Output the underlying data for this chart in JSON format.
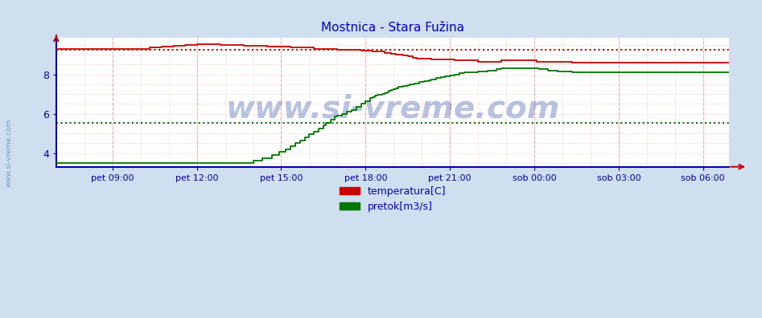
{
  "title": "Mostnica - Stara Fužina",
  "title_color": "#0000cc",
  "outer_bg_color": "#d0dff0",
  "plot_bg_color": "#ffffff",
  "xlabel_color": "#0000aa",
  "ylabel_color": "#0000aa",
  "x_tick_labels": [
    "pet 09:00",
    "pet 12:00",
    "pet 15:00",
    "pet 18:00",
    "pet 21:00",
    "sob 00:00",
    "sob 03:00",
    "sob 06:00"
  ],
  "x_tick_positions": [
    24,
    60,
    96,
    132,
    168,
    204,
    240,
    276
  ],
  "y_ticks": [
    4,
    6,
    8
  ],
  "ylim": [
    3.3,
    9.85
  ],
  "xlim": [
    0,
    287
  ],
  "red_avg": 9.25,
  "green_avg": 5.55,
  "red_color": "#cc0000",
  "green_color": "#007700",
  "spine_color": "#0000bb",
  "hgrid_color": "#ffaaaa",
  "vgrid_color": "#ffaaaa",
  "legend_labels": [
    "temperatura[C]",
    "pretok[m3/s]"
  ],
  "n_points": 288,
  "red_data": [
    9.3,
    9.3,
    9.3,
    9.3,
    9.3,
    9.3,
    9.3,
    9.3,
    9.3,
    9.3,
    9.3,
    9.3,
    9.3,
    9.3,
    9.3,
    9.3,
    9.3,
    9.3,
    9.3,
    9.3,
    9.3,
    9.3,
    9.3,
    9.3,
    9.3,
    9.3,
    9.3,
    9.3,
    9.3,
    9.3,
    9.3,
    9.3,
    9.3,
    9.3,
    9.3,
    9.3,
    9.3,
    9.3,
    9.3,
    9.3,
    9.35,
    9.35,
    9.35,
    9.35,
    9.35,
    9.4,
    9.4,
    9.4,
    9.4,
    9.4,
    9.45,
    9.45,
    9.45,
    9.45,
    9.45,
    9.5,
    9.5,
    9.5,
    9.5,
    9.5,
    9.55,
    9.55,
    9.55,
    9.55,
    9.55,
    9.55,
    9.55,
    9.55,
    9.55,
    9.55,
    9.5,
    9.5,
    9.5,
    9.5,
    9.5,
    9.5,
    9.5,
    9.5,
    9.5,
    9.5,
    9.45,
    9.45,
    9.45,
    9.45,
    9.45,
    9.45,
    9.45,
    9.45,
    9.45,
    9.45,
    9.4,
    9.4,
    9.4,
    9.4,
    9.4,
    9.4,
    9.4,
    9.4,
    9.4,
    9.4,
    9.35,
    9.35,
    9.35,
    9.35,
    9.35,
    9.35,
    9.35,
    9.35,
    9.35,
    9.35,
    9.3,
    9.3,
    9.3,
    9.3,
    9.3,
    9.3,
    9.3,
    9.3,
    9.3,
    9.3,
    9.25,
    9.25,
    9.25,
    9.25,
    9.25,
    9.25,
    9.25,
    9.25,
    9.25,
    9.25,
    9.2,
    9.2,
    9.2,
    9.2,
    9.2,
    9.15,
    9.15,
    9.15,
    9.15,
    9.15,
    9.1,
    9.1,
    9.1,
    9.05,
    9.05,
    9.0,
    9.0,
    9.0,
    8.95,
    8.95,
    8.9,
    8.9,
    8.85,
    8.85,
    8.8,
    8.8,
    8.8,
    8.8,
    8.8,
    8.8,
    8.75,
    8.75,
    8.75,
    8.75,
    8.75,
    8.75,
    8.75,
    8.75,
    8.75,
    8.75,
    8.7,
    8.7,
    8.7,
    8.7,
    8.7,
    8.7,
    8.7,
    8.7,
    8.7,
    8.7,
    8.65,
    8.65,
    8.65,
    8.65,
    8.65,
    8.65,
    8.65,
    8.65,
    8.65,
    8.65,
    8.7,
    8.7,
    8.7,
    8.7,
    8.7,
    8.7,
    8.7,
    8.7,
    8.7,
    8.7,
    8.7,
    8.7,
    8.7,
    8.7,
    8.7,
    8.65,
    8.65,
    8.65,
    8.65,
    8.65,
    8.65,
    8.65,
    8.65,
    8.65,
    8.65,
    8.65,
    8.65,
    8.65,
    8.65,
    8.65,
    8.6,
    8.6,
    8.6,
    8.6,
    8.6,
    8.6,
    8.6,
    8.6,
    8.6,
    8.6,
    8.6,
    8.6,
    8.6,
    8.6,
    8.6,
    8.6,
    8.6,
    8.6,
    8.6,
    8.6,
    8.6,
    8.6,
    8.6,
    8.6,
    8.6,
    8.6,
    8.6,
    8.6,
    8.6,
    8.6,
    8.6,
    8.6,
    8.6,
    8.6,
    8.6,
    8.6,
    8.6,
    8.6,
    8.6,
    8.6,
    8.6,
    8.6,
    8.6,
    8.6,
    8.6,
    8.6,
    8.6,
    8.6,
    8.6,
    8.6,
    8.6,
    8.6,
    8.6,
    8.6,
    8.6,
    8.6,
    8.6,
    8.6,
    8.6,
    8.6,
    8.6,
    8.6,
    8.6,
    8.6,
    8.6,
    8.6,
    8.6,
    8.6
  ],
  "green_data": [
    3.5,
    3.5,
    3.5,
    3.5,
    3.5,
    3.5,
    3.5,
    3.5,
    3.5,
    3.5,
    3.5,
    3.5,
    3.5,
    3.5,
    3.5,
    3.5,
    3.5,
    3.5,
    3.5,
    3.5,
    3.5,
    3.5,
    3.5,
    3.5,
    3.5,
    3.5,
    3.5,
    3.5,
    3.5,
    3.5,
    3.5,
    3.5,
    3.5,
    3.5,
    3.5,
    3.5,
    3.5,
    3.5,
    3.5,
    3.5,
    3.5,
    3.5,
    3.5,
    3.5,
    3.5,
    3.5,
    3.5,
    3.5,
    3.5,
    3.5,
    3.5,
    3.5,
    3.5,
    3.5,
    3.5,
    3.5,
    3.5,
    3.5,
    3.5,
    3.5,
    3.5,
    3.5,
    3.5,
    3.5,
    3.5,
    3.5,
    3.5,
    3.5,
    3.5,
    3.5,
    3.5,
    3.5,
    3.5,
    3.5,
    3.5,
    3.5,
    3.5,
    3.5,
    3.5,
    3.5,
    3.5,
    3.5,
    3.5,
    3.5,
    3.6,
    3.6,
    3.6,
    3.6,
    3.75,
    3.75,
    3.75,
    3.75,
    3.9,
    3.9,
    3.9,
    4.05,
    4.05,
    4.05,
    4.2,
    4.2,
    4.35,
    4.35,
    4.5,
    4.5,
    4.65,
    4.65,
    4.8,
    4.8,
    4.95,
    4.95,
    5.1,
    5.1,
    5.25,
    5.25,
    5.4,
    5.55,
    5.55,
    5.7,
    5.7,
    5.85,
    5.9,
    5.9,
    6.0,
    6.0,
    6.1,
    6.1,
    6.2,
    6.2,
    6.35,
    6.35,
    6.5,
    6.5,
    6.65,
    6.65,
    6.8,
    6.85,
    6.9,
    6.95,
    6.95,
    7.0,
    7.05,
    7.1,
    7.15,
    7.2,
    7.25,
    7.3,
    7.35,
    7.35,
    7.4,
    7.4,
    7.45,
    7.5,
    7.5,
    7.55,
    7.55,
    7.6,
    7.6,
    7.65,
    7.65,
    7.7,
    7.75,
    7.75,
    7.8,
    7.8,
    7.85,
    7.85,
    7.9,
    7.9,
    7.95,
    7.95,
    8.0,
    8.0,
    8.05,
    8.05,
    8.1,
    8.1,
    8.1,
    8.1,
    8.1,
    8.1,
    8.15,
    8.15,
    8.15,
    8.15,
    8.2,
    8.2,
    8.2,
    8.2,
    8.25,
    8.25,
    8.3,
    8.3,
    8.3,
    8.3,
    8.3,
    8.3,
    8.3,
    8.3,
    8.3,
    8.3,
    8.3,
    8.3,
    8.3,
    8.3,
    8.3,
    8.3,
    8.25,
    8.25,
    8.25,
    8.25,
    8.2,
    8.2,
    8.2,
    8.2,
    8.15,
    8.15,
    8.15,
    8.15,
    8.15,
    8.15,
    8.1,
    8.1,
    8.1,
    8.1,
    8.1,
    8.1,
    8.1,
    8.1,
    8.1,
    8.1,
    8.1,
    8.1,
    8.1,
    8.1,
    8.1,
    8.1,
    8.1,
    8.1,
    8.1,
    8.1,
    8.1,
    8.1,
    8.1,
    8.1,
    8.1,
    8.1,
    8.1,
    8.1,
    8.1,
    8.1,
    8.1,
    8.1,
    8.1,
    8.1,
    8.1,
    8.1,
    8.1,
    8.1,
    8.1,
    8.1,
    8.1,
    8.1,
    8.1,
    8.1,
    8.1,
    8.1,
    8.1,
    8.1,
    8.1,
    8.1,
    8.1,
    8.1,
    8.1,
    8.1,
    8.1,
    8.1,
    8.1,
    8.1,
    8.1,
    8.1,
    8.1,
    8.1,
    8.1,
    8.1,
    8.1,
    8.1,
    8.1,
    8.1
  ]
}
